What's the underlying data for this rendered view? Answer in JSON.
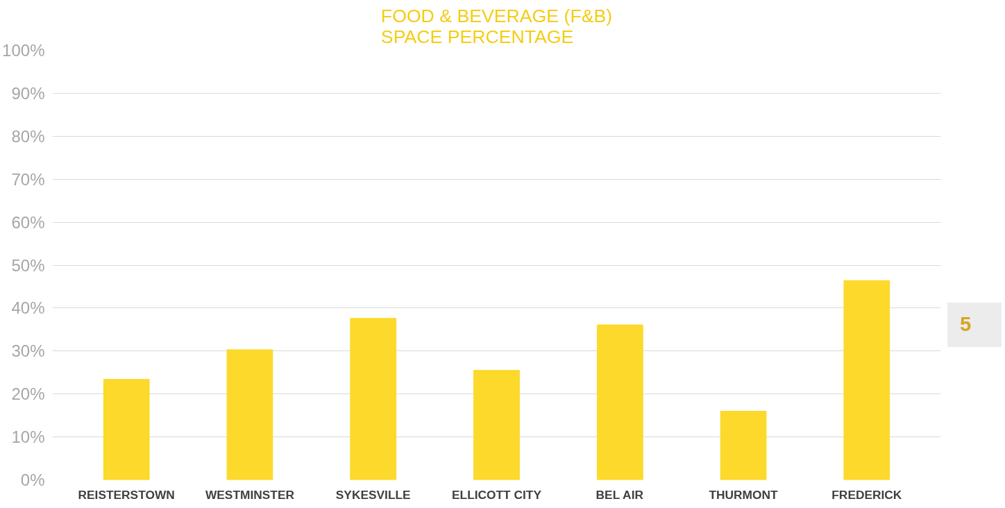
{
  "chart_data": {
    "type": "bar",
    "title": "FOOD & BEVERAGE (F&B)\nSPACE PERCENTAGE",
    "categories": [
      "REISTERSTOWN",
      "WESTMINSTER",
      "SYKESVILLE",
      "ELLICOTT CITY",
      "BEL AIR",
      "THURMONT",
      "FREDERICK"
    ],
    "values": [
      23.4,
      30.3,
      37.6,
      25.5,
      36.1,
      16.0,
      46.4
    ],
    "color": "#fcd92b",
    "ylim": [
      0,
      100
    ],
    "yticks": [
      {
        "value": 0,
        "label": "0%"
      },
      {
        "value": 10,
        "label": "10%"
      },
      {
        "value": 20,
        "label": "20%"
      },
      {
        "value": 30,
        "label": "30%"
      },
      {
        "value": 40,
        "label": "40%"
      },
      {
        "value": 50,
        "label": "50%"
      },
      {
        "value": 60,
        "label": "60%"
      },
      {
        "value": 70,
        "label": "70%"
      },
      {
        "value": 80,
        "label": "80%"
      },
      {
        "value": 90,
        "label": "90%"
      },
      {
        "value": 100,
        "label": "100%"
      }
    ],
    "grid": "y",
    "annotations": [
      "5"
    ]
  }
}
